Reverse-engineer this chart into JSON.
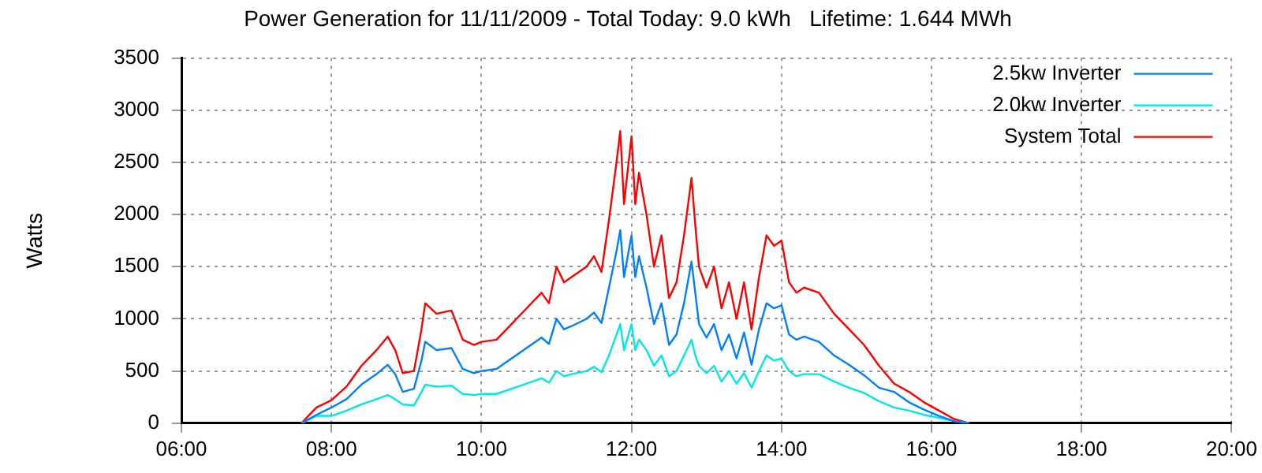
{
  "chart_data": {
    "type": "line",
    "title": "Power Generation for 11/11/2009 - Total Today: 9.0 kWh   Lifetime: 1.644 MWh",
    "ylabel": "Watts",
    "x": [
      7.6,
      7.8,
      8.0,
      8.2,
      8.4,
      8.6,
      8.75,
      8.85,
      8.95,
      9.1,
      9.2,
      9.25,
      9.4,
      9.6,
      9.75,
      9.9,
      10.0,
      10.2,
      10.4,
      10.6,
      10.8,
      10.9,
      11.0,
      11.1,
      11.2,
      11.4,
      11.5,
      11.6,
      11.7,
      11.8,
      11.85,
      11.9,
      12.0,
      12.05,
      12.1,
      12.2,
      12.3,
      12.4,
      12.5,
      12.6,
      12.7,
      12.8,
      12.85,
      12.9,
      13.0,
      13.1,
      13.2,
      13.3,
      13.4,
      13.5,
      13.6,
      13.7,
      13.8,
      13.9,
      14.0,
      14.1,
      14.2,
      14.3,
      14.5,
      14.7,
      14.9,
      15.1,
      15.3,
      15.5,
      15.7,
      15.9,
      16.1,
      16.3,
      16.5
    ],
    "series": [
      {
        "name": "2.5kw Inverter",
        "color": "#0080ff",
        "values": [
          0,
          80,
          150,
          230,
          370,
          470,
          560,
          470,
          300,
          330,
          600,
          780,
          700,
          720,
          520,
          480,
          500,
          520,
          620,
          720,
          820,
          760,
          1000,
          900,
          930,
          1000,
          1060,
          960,
          1300,
          1650,
          1850,
          1400,
          1800,
          1400,
          1600,
          1300,
          950,
          1150,
          750,
          850,
          1150,
          1550,
          1250,
          950,
          820,
          950,
          700,
          850,
          620,
          870,
          560,
          900,
          1150,
          1100,
          1130,
          850,
          800,
          830,
          780,
          650,
          560,
          460,
          340,
          300,
          200,
          130,
          70,
          20,
          0
        ]
      },
      {
        "name": "2.0kw Inverter",
        "color": "#00e8e8",
        "values": [
          0,
          70,
          70,
          120,
          180,
          230,
          270,
          230,
          180,
          170,
          300,
          370,
          350,
          360,
          280,
          270,
          280,
          280,
          330,
          380,
          430,
          390,
          500,
          450,
          470,
          500,
          540,
          490,
          650,
          850,
          950,
          700,
          950,
          700,
          800,
          700,
          550,
          650,
          450,
          500,
          650,
          800,
          650,
          550,
          480,
          550,
          400,
          500,
          380,
          480,
          340,
          500,
          650,
          600,
          620,
          500,
          450,
          470,
          470,
          400,
          340,
          290,
          210,
          150,
          120,
          80,
          50,
          20,
          0
        ]
      },
      {
        "name": "System Total",
        "color": "#ff0000",
        "values": [
          0,
          150,
          220,
          350,
          550,
          700,
          830,
          700,
          480,
          500,
          900,
          1150,
          1050,
          1080,
          800,
          750,
          780,
          800,
          950,
          1100,
          1250,
          1150,
          1500,
          1350,
          1400,
          1500,
          1600,
          1450,
          1950,
          2500,
          2800,
          2100,
          2750,
          2100,
          2400,
          2000,
          1500,
          1800,
          1200,
          1350,
          1800,
          2350,
          1900,
          1500,
          1300,
          1500,
          1100,
          1350,
          1000,
          1350,
          900,
          1400,
          1800,
          1700,
          1750,
          1350,
          1250,
          1300,
          1250,
          1050,
          900,
          750,
          550,
          380,
          300,
          200,
          120,
          40,
          0
        ]
      }
    ],
    "xlim": [
      6,
      20
    ],
    "xticks": [
      {
        "value": 6,
        "label": "06:00"
      },
      {
        "value": 8,
        "label": "08:00"
      },
      {
        "value": 10,
        "label": "10:00"
      },
      {
        "value": 12,
        "label": "12:00"
      },
      {
        "value": 14,
        "label": "14:00"
      },
      {
        "value": 16,
        "label": "16:00"
      },
      {
        "value": 18,
        "label": "18:00"
      },
      {
        "value": 20,
        "label": "20:00"
      }
    ],
    "ylim": [
      0,
      3500
    ],
    "yticks": [
      0,
      500,
      1000,
      1500,
      2000,
      2500,
      3000,
      3500
    ],
    "grid": true,
    "legend": "top right",
    "marker": "none",
    "line_style": "solid"
  }
}
